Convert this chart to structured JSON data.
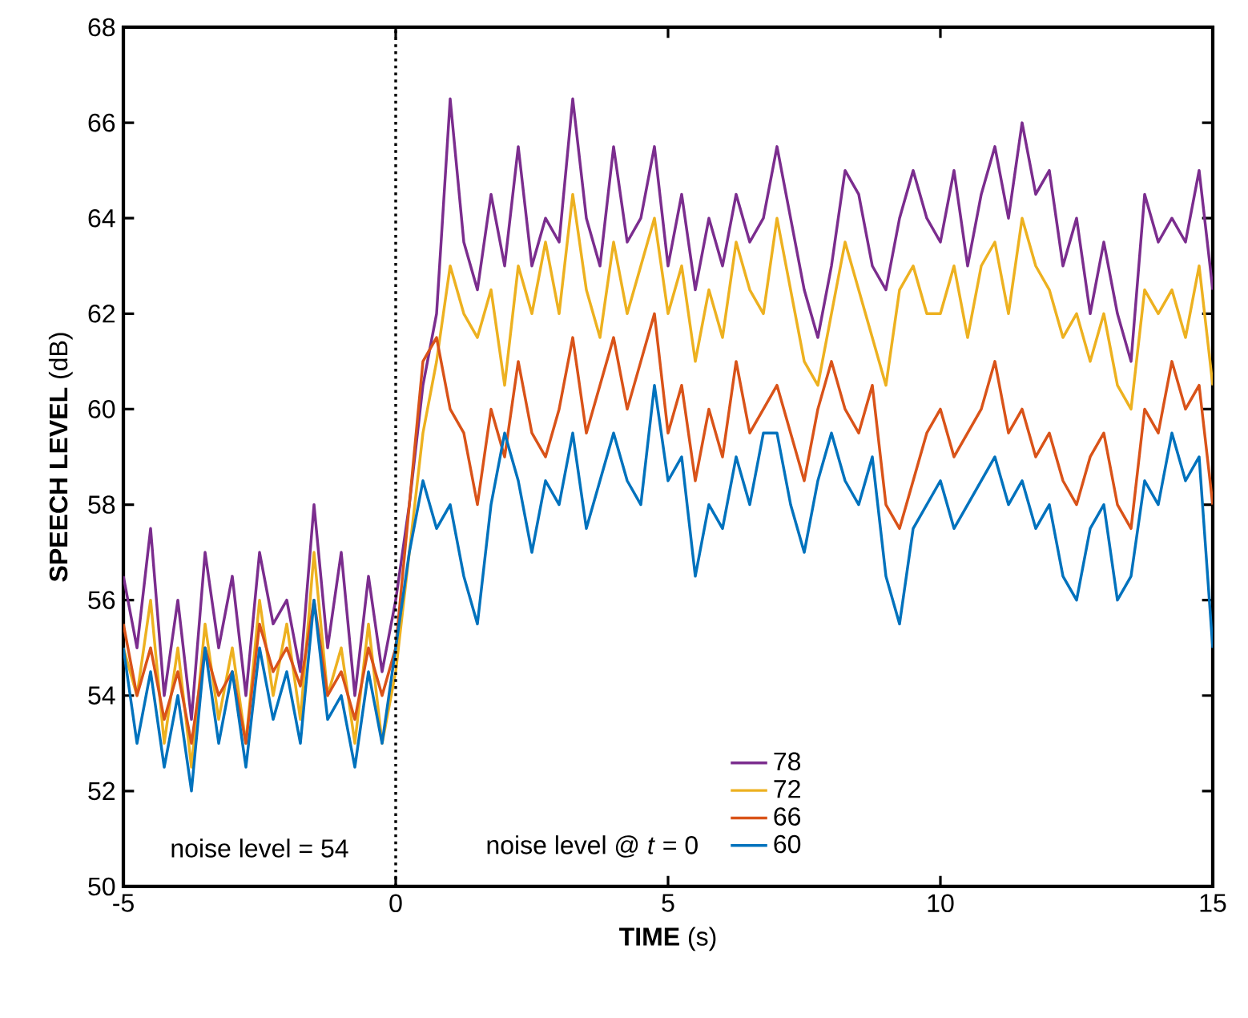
{
  "chart_data": {
    "type": "line",
    "xlabel": "**TIME** (s)",
    "ylabel": "**SPEECH LEVEL** (dB)",
    "legend_title": "noise level @ *t* = 0",
    "legend": "bottom",
    "line_style": "solid",
    "marker": "none",
    "xlim": [
      -5,
      15
    ],
    "ylim": [
      50,
      68
    ],
    "xticks": [
      -5,
      0,
      5,
      10,
      15
    ],
    "yticks": [
      50,
      52,
      54,
      56,
      58,
      60,
      62,
      64,
      66,
      68
    ],
    "ref_lines": [
      {
        "axis": "x",
        "value": 0,
        "color": "#000000",
        "line_style": "dotted"
      }
    ],
    "annotations": [
      "noise level = 54"
    ],
    "x": [
      -5,
      -4.75,
      -4.5,
      -4.25,
      -4,
      -3.75,
      -3.5,
      -3.25,
      -3,
      -2.75,
      -2.5,
      -2.25,
      -2,
      -1.75,
      -1.5,
      -1.25,
      -1,
      -0.75,
      -0.5,
      -0.25,
      0,
      0.25,
      0.5,
      0.75,
      1,
      1.25,
      1.5,
      1.75,
      2,
      2.25,
      2.5,
      2.75,
      3,
      3.25,
      3.5,
      3.75,
      4,
      4.25,
      4.5,
      4.75,
      5,
      5.25,
      5.5,
      5.75,
      6,
      6.25,
      6.5,
      6.75,
      7,
      7.25,
      7.5,
      7.75,
      8,
      8.25,
      8.5,
      8.75,
      9,
      9.25,
      9.5,
      9.75,
      10,
      10.25,
      10.5,
      10.75,
      11,
      11.25,
      11.5,
      11.75,
      12,
      12.25,
      12.5,
      12.75,
      13,
      13.25,
      13.5,
      13.75,
      14,
      14.25,
      14.5,
      14.75,
      15
    ],
    "series": [
      {
        "name": "78",
        "color": "#7b2d8e",
        "values": [
          56.5,
          55,
          57.5,
          54,
          56,
          53.5,
          57,
          55,
          56.5,
          54,
          57,
          55.5,
          56,
          54.5,
          58,
          55,
          57,
          54,
          56.5,
          54.5,
          56,
          58,
          60.5,
          62,
          66.5,
          63.5,
          62.5,
          64.5,
          63,
          65.5,
          63,
          64,
          63.5,
          66.5,
          64,
          63,
          65.5,
          63.5,
          64,
          65.5,
          63,
          64.5,
          62.5,
          64,
          63,
          64.5,
          63.5,
          64,
          65.5,
          64,
          62.5,
          61.5,
          63,
          65,
          64.5,
          63,
          62.5,
          64,
          65,
          64,
          63.5,
          65,
          63,
          64.5,
          65.5,
          64,
          66,
          64.5,
          65,
          63,
          64,
          62,
          63.5,
          62,
          61,
          64.5,
          63.5,
          64,
          63.5,
          65,
          62.5
        ]
      },
      {
        "name": "72",
        "color": "#edb120",
        "values": [
          55,
          54,
          56,
          53,
          55,
          52.5,
          55.5,
          53.5,
          55,
          53,
          56,
          54,
          55.5,
          53.5,
          57,
          54,
          55,
          53,
          55.5,
          53,
          54.5,
          57,
          59.5,
          61,
          63,
          62,
          61.5,
          62.5,
          60.5,
          63,
          62,
          63.5,
          62,
          64.5,
          62.5,
          61.5,
          63.5,
          62,
          63,
          64,
          62,
          63,
          61,
          62.5,
          61.5,
          63.5,
          62.5,
          62,
          64,
          62.5,
          61,
          60.5,
          62,
          63.5,
          62.5,
          61.5,
          60.5,
          62.5,
          63,
          62,
          62,
          63,
          61.5,
          63,
          63.5,
          62,
          64,
          63,
          62.5,
          61.5,
          62,
          61,
          62,
          60.5,
          60,
          62.5,
          62,
          62.5,
          61.5,
          63,
          60.5
        ]
      },
      {
        "name": "66",
        "color": "#d95319",
        "values": [
          55.5,
          54,
          55,
          53.5,
          54.5,
          53,
          55,
          54,
          54.5,
          53,
          55.5,
          54.5,
          55,
          54.2,
          56,
          54,
          54.5,
          53.5,
          55,
          54,
          55,
          58,
          61,
          61.5,
          60,
          59.5,
          58,
          60,
          59,
          61,
          59.5,
          59,
          60,
          61.5,
          59.5,
          60.5,
          61.5,
          60,
          61,
          62,
          59.5,
          60.5,
          58.5,
          60,
          59,
          61,
          59.5,
          60,
          60.5,
          59.5,
          58.5,
          60,
          61,
          60,
          59.5,
          60.5,
          58,
          57.5,
          58.5,
          59.5,
          60,
          59,
          59.5,
          60,
          61,
          59.5,
          60,
          59,
          59.5,
          58.5,
          58,
          59,
          59.5,
          58,
          57.5,
          60,
          59.5,
          61,
          60,
          60.5,
          58
        ]
      },
      {
        "name": "60",
        "color": "#0072bd",
        "values": [
          55,
          53,
          54.5,
          52.5,
          54,
          52,
          55,
          53,
          54.5,
          52.5,
          55,
          53.5,
          54.5,
          53,
          56,
          53.5,
          54,
          52.5,
          54.5,
          53,
          55,
          57,
          58.5,
          57.5,
          58,
          56.5,
          55.5,
          58,
          59.5,
          58.5,
          57,
          58.5,
          58,
          59.5,
          57.5,
          58.5,
          59.5,
          58.5,
          58,
          60.5,
          58.5,
          59,
          56.5,
          58,
          57.5,
          59,
          58,
          59.5,
          59.5,
          58,
          57,
          58.5,
          59.5,
          58.5,
          58,
          59,
          56.5,
          55.5,
          57.5,
          58,
          58.5,
          57.5,
          58,
          58.5,
          59,
          58,
          58.5,
          57.5,
          58,
          56.5,
          56,
          57.5,
          58,
          56,
          56.5,
          58.5,
          58,
          59.5,
          58.5,
          59,
          55
        ]
      }
    ]
  }
}
